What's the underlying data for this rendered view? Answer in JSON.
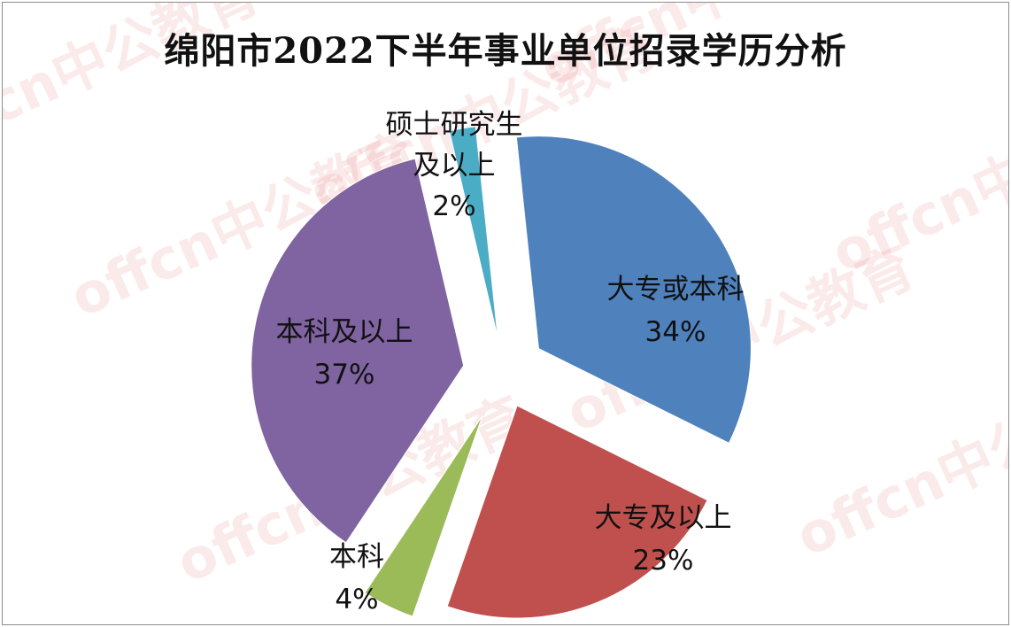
{
  "chart_data": {
    "type": "pie",
    "title": "绵阳市2022下半年事业单位招录学历分析",
    "slices": [
      {
        "label": "大专或本科",
        "value": 34,
        "value_label": "34%",
        "color": "#4F81BD"
      },
      {
        "label": "大专及以上",
        "value": 23,
        "value_label": "23%",
        "color": "#C0504D"
      },
      {
        "label": "本科",
        "value": 4,
        "value_label": "4%",
        "color": "#9BBB59"
      },
      {
        "label": "本科及以上",
        "value": 37,
        "value_label": "37%",
        "color": "#8064A2"
      },
      {
        "label": "硕士研究生及以上",
        "label_lines": [
          "硕士研究生",
          "及以上"
        ],
        "value": 2,
        "value_label": "2%",
        "color": "#4BACC6"
      }
    ],
    "legend": "none",
    "exploded": true
  },
  "watermark": {
    "text": "offcn中公教育",
    "color": "#E25A5A"
  }
}
